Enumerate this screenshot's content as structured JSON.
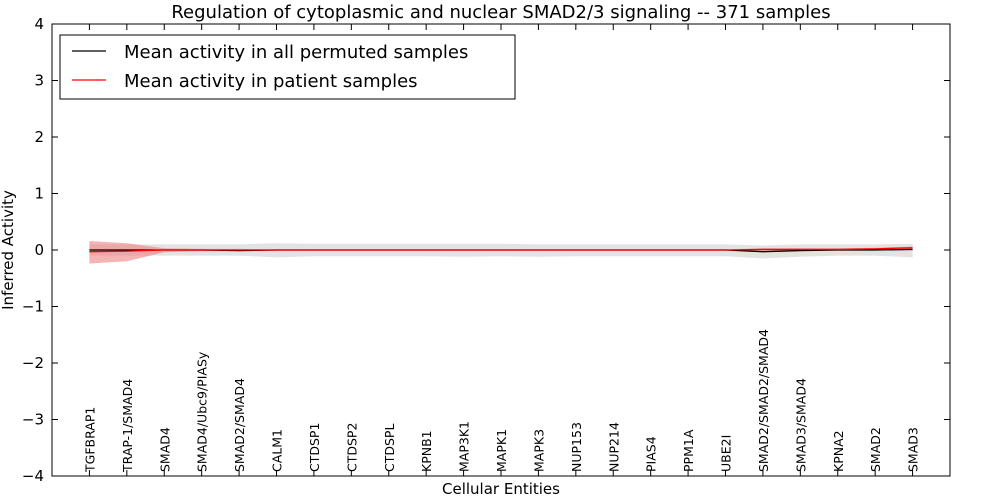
{
  "chart_data": {
    "type": "line",
    "title": "Regulation of cytoplasmic and nuclear SMAD2/3 signaling -- 371 samples",
    "xlabel": "Cellular Entities",
    "ylabel": "Inferred Activity",
    "ylim": [
      -4,
      4
    ],
    "xlim": [
      -1,
      23
    ],
    "yticks": [
      -4,
      -3,
      -2,
      -1,
      0,
      1,
      2,
      3,
      4
    ],
    "ytick_labels": [
      "−4",
      "−3",
      "−2",
      "−1",
      "0",
      "1",
      "2",
      "3",
      "4"
    ],
    "legend_position": "top-left",
    "categories": [
      "TGFBRAP1",
      "TRAP-1/SMAD4",
      "SMAD4",
      "SMAD4/Ubc9/PIASy",
      "SMAD2/SMAD4",
      "CALM1",
      "CTDSP1",
      "CTDSP2",
      "CTDSPL",
      "KPNB1",
      "MAP3K1",
      "MAPK1",
      "MAPK3",
      "NUP153",
      "NUP214",
      "PIAS4",
      "PPM1A",
      "UBE2I",
      "SMAD2/SMAD2/SMAD4",
      "SMAD3/SMAD4",
      "KPNA2",
      "SMAD2",
      "SMAD3"
    ],
    "series": [
      {
        "name": "Mean activity in all permuted samples",
        "color": "#000000",
        "band_color": "#c8c8c8",
        "values": [
          0,
          0,
          0,
          0,
          -0.01,
          0,
          0,
          0,
          0,
          0,
          0,
          0,
          0,
          0,
          0,
          0,
          0,
          0,
          -0.03,
          -0.01,
          0,
          0,
          0.01
        ],
        "band_upper": [
          0.1,
          0.1,
          0.1,
          0.1,
          0.1,
          0.12,
          0.11,
          0.11,
          0.11,
          0.11,
          0.11,
          0.11,
          0.1,
          0.1,
          0.1,
          0.1,
          0.1,
          0.1,
          0.08,
          0.1,
          0.1,
          0.1,
          0.11
        ],
        "band_lower": [
          -0.1,
          -0.1,
          -0.1,
          -0.1,
          -0.1,
          -0.13,
          -0.11,
          -0.11,
          -0.11,
          -0.11,
          -0.12,
          -0.11,
          -0.12,
          -0.11,
          -0.11,
          -0.11,
          -0.11,
          -0.11,
          -0.15,
          -0.12,
          -0.1,
          -0.1,
          -0.13
        ]
      },
      {
        "name": "Mean activity in patient samples",
        "color": "#ff0000",
        "band_color": "#f08080",
        "values": [
          -0.03,
          -0.02,
          0,
          0,
          0,
          0,
          0,
          0,
          0,
          0,
          0,
          0,
          0,
          0,
          0,
          0,
          0,
          0,
          0.01,
          0.01,
          0.01,
          0.02,
          0.04
        ],
        "band_upper": [
          0.16,
          0.12,
          0.03,
          0.02,
          0.02,
          0.01,
          0.01,
          0.01,
          0.01,
          0.01,
          0.01,
          0.01,
          0.01,
          0.01,
          0.01,
          0.01,
          0.01,
          0.01,
          0.03,
          0.03,
          0.03,
          0.04,
          0.06
        ],
        "band_lower": [
          -0.24,
          -0.2,
          -0.04,
          -0.02,
          -0.02,
          -0.01,
          -0.01,
          -0.01,
          -0.01,
          -0.01,
          -0.01,
          -0.01,
          -0.01,
          -0.01,
          -0.01,
          -0.01,
          -0.01,
          -0.01,
          -0.01,
          -0.01,
          -0.01,
          0,
          0.02
        ]
      }
    ]
  }
}
